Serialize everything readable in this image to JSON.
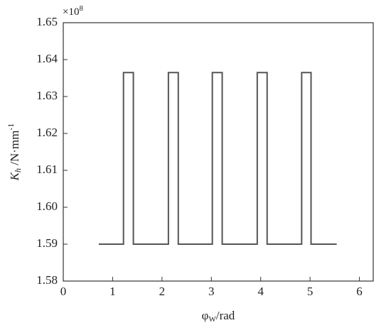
{
  "chart_data": {
    "type": "line",
    "y_multiplier": {
      "base": "×10",
      "exponent": "8"
    },
    "ylabel": {
      "symbol": "K",
      "subscript": "h",
      "unit": " /N·mm",
      "superscript": "-1"
    },
    "xlabel": {
      "symbol": "φ",
      "subscript": "W",
      "unit": "/rad"
    },
    "xlim": [
      0,
      6.28
    ],
    "xticks": [
      0,
      1,
      2,
      3,
      4,
      5,
      6
    ],
    "ylim": [
      1.58,
      1.65
    ],
    "yticks": [
      1.58,
      1.59,
      {
        "value": 1.6,
        "label": "1.60"
      },
      1.61,
      1.62,
      1.63,
      1.64,
      1.65
    ],
    "series": [
      {
        "color": "#555555",
        "x": [
          0.72,
          1.22,
          1.22,
          1.42,
          1.42,
          2.13,
          2.13,
          2.33,
          2.33,
          3.02,
          3.02,
          3.22,
          3.22,
          3.93,
          3.93,
          4.13,
          4.13,
          4.83,
          4.83,
          5.02,
          5.02,
          5.54
        ],
        "values": [
          1.59,
          1.59,
          1.6365,
          1.6365,
          1.59,
          1.59,
          1.6365,
          1.6365,
          1.59,
          1.59,
          1.6365,
          1.6365,
          1.59,
          1.59,
          1.6365,
          1.6365,
          1.59,
          1.59,
          1.6365,
          1.6365,
          1.59,
          1.59
        ]
      }
    ]
  }
}
